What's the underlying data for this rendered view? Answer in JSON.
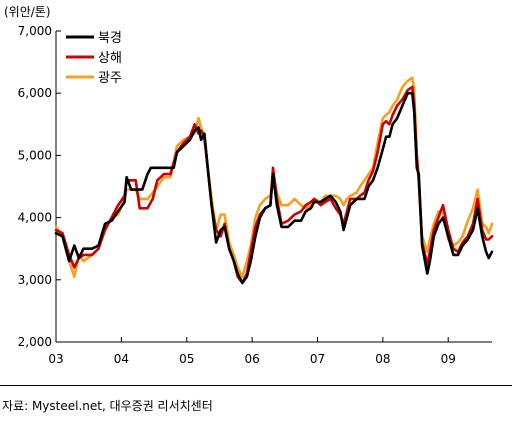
{
  "unit_label": "(위안/톤)",
  "source_note": "자료: Mysteel.net, 대우증권 리서치센터",
  "chart_data": {
    "type": "line",
    "title": "",
    "xlabel": "",
    "ylabel": "(위안/톤)",
    "x_ticks": [
      "03",
      "04",
      "05",
      "06",
      "07",
      "08",
      "09"
    ],
    "y_ticks": [
      "2,000",
      "3,000",
      "4,000",
      "5,000",
      "6,000",
      "7,000"
    ],
    "xlim": [
      2003.0,
      2009.67
    ],
    "ylim": [
      2000,
      7000
    ],
    "grid": false,
    "legend_position": "top-left",
    "series": [
      {
        "name": "북경",
        "color": "#000000",
        "points": [
          [
            2003.0,
            3750
          ],
          [
            2003.1,
            3700
          ],
          [
            2003.2,
            3300
          ],
          [
            2003.28,
            3550
          ],
          [
            2003.35,
            3350
          ],
          [
            2003.42,
            3500
          ],
          [
            2003.55,
            3500
          ],
          [
            2003.65,
            3550
          ],
          [
            2003.75,
            3900
          ],
          [
            2003.85,
            3950
          ],
          [
            2003.95,
            4100
          ],
          [
            2004.05,
            4250
          ],
          [
            2004.08,
            4650
          ],
          [
            2004.15,
            4450
          ],
          [
            2004.25,
            4450
          ],
          [
            2004.32,
            4450
          ],
          [
            2004.4,
            4700
          ],
          [
            2004.45,
            4800
          ],
          [
            2004.55,
            4800
          ],
          [
            2004.7,
            4800
          ],
          [
            2004.8,
            4800
          ],
          [
            2004.85,
            5050
          ],
          [
            2004.95,
            5150
          ],
          [
            2005.05,
            5250
          ],
          [
            2005.12,
            5400
          ],
          [
            2005.18,
            5450
          ],
          [
            2005.22,
            5250
          ],
          [
            2005.27,
            5350
          ],
          [
            2005.32,
            4800
          ],
          [
            2005.38,
            4200
          ],
          [
            2005.45,
            3600
          ],
          [
            2005.52,
            3800
          ],
          [
            2005.58,
            3850
          ],
          [
            2005.65,
            3500
          ],
          [
            2005.72,
            3300
          ],
          [
            2005.78,
            3100
          ],
          [
            2005.85,
            2950
          ],
          [
            2005.92,
            3050
          ],
          [
            2005.98,
            3300
          ],
          [
            2006.05,
            3700
          ],
          [
            2006.12,
            4000
          ],
          [
            2006.2,
            4150
          ],
          [
            2006.28,
            4200
          ],
          [
            2006.32,
            4700
          ],
          [
            2006.38,
            4200
          ],
          [
            2006.45,
            3850
          ],
          [
            2006.55,
            3850
          ],
          [
            2006.65,
            3950
          ],
          [
            2006.75,
            3950
          ],
          [
            2006.82,
            4100
          ],
          [
            2006.9,
            4150
          ],
          [
            2006.95,
            4250
          ],
          [
            2007.05,
            4250
          ],
          [
            2007.12,
            4300
          ],
          [
            2007.2,
            4350
          ],
          [
            2007.28,
            4250
          ],
          [
            2007.35,
            4100
          ],
          [
            2007.4,
            3800
          ],
          [
            2007.45,
            4000
          ],
          [
            2007.5,
            4200
          ],
          [
            2007.6,
            4300
          ],
          [
            2007.65,
            4300
          ],
          [
            2007.72,
            4300
          ],
          [
            2007.78,
            4500
          ],
          [
            2007.85,
            4600
          ],
          [
            2007.92,
            4800
          ],
          [
            2008.0,
            5100
          ],
          [
            2008.05,
            5300
          ],
          [
            2008.1,
            5300
          ],
          [
            2008.15,
            5500
          ],
          [
            2008.22,
            5600
          ],
          [
            2008.3,
            5800
          ],
          [
            2008.38,
            6000
          ],
          [
            2008.45,
            6000
          ],
          [
            2008.48,
            5700
          ],
          [
            2008.52,
            4800
          ],
          [
            2008.55,
            4700
          ],
          [
            2008.6,
            3550
          ],
          [
            2008.68,
            3100
          ],
          [
            2008.72,
            3300
          ],
          [
            2008.78,
            3700
          ],
          [
            2008.85,
            3900
          ],
          [
            2008.92,
            4000
          ],
          [
            2009.0,
            3700
          ],
          [
            2009.08,
            3400
          ],
          [
            2009.15,
            3400
          ],
          [
            2009.22,
            3550
          ],
          [
            2009.3,
            3650
          ],
          [
            2009.38,
            3800
          ],
          [
            2009.45,
            4150
          ],
          [
            2009.52,
            3700
          ],
          [
            2009.58,
            3450
          ],
          [
            2009.62,
            3350
          ],
          [
            2009.67,
            3450
          ]
        ]
      },
      {
        "name": "상해",
        "color": "#cc0000",
        "points": [
          [
            2003.0,
            3800
          ],
          [
            2003.1,
            3750
          ],
          [
            2003.2,
            3400
          ],
          [
            2003.28,
            3200
          ],
          [
            2003.35,
            3350
          ],
          [
            2003.42,
            3400
          ],
          [
            2003.55,
            3400
          ],
          [
            2003.65,
            3500
          ],
          [
            2003.75,
            3800
          ],
          [
            2003.85,
            4000
          ],
          [
            2003.95,
            4200
          ],
          [
            2004.05,
            4350
          ],
          [
            2004.08,
            4600
          ],
          [
            2004.15,
            4600
          ],
          [
            2004.22,
            4600
          ],
          [
            2004.28,
            4150
          ],
          [
            2004.4,
            4150
          ],
          [
            2004.48,
            4300
          ],
          [
            2004.55,
            4600
          ],
          [
            2004.65,
            4700
          ],
          [
            2004.75,
            4700
          ],
          [
            2004.85,
            5050
          ],
          [
            2004.95,
            5200
          ],
          [
            2005.05,
            5300
          ],
          [
            2005.12,
            5500
          ],
          [
            2005.18,
            5350
          ],
          [
            2005.22,
            5400
          ],
          [
            2005.27,
            5300
          ],
          [
            2005.32,
            4800
          ],
          [
            2005.38,
            4200
          ],
          [
            2005.45,
            3800
          ],
          [
            2005.52,
            3700
          ],
          [
            2005.58,
            3900
          ],
          [
            2005.65,
            3500
          ],
          [
            2005.72,
            3300
          ],
          [
            2005.78,
            3050
          ],
          [
            2005.85,
            2950
          ],
          [
            2005.92,
            3100
          ],
          [
            2005.98,
            3450
          ],
          [
            2006.05,
            3850
          ],
          [
            2006.12,
            4050
          ],
          [
            2006.2,
            4150
          ],
          [
            2006.28,
            4200
          ],
          [
            2006.32,
            4800
          ],
          [
            2006.38,
            4300
          ],
          [
            2006.45,
            3900
          ],
          [
            2006.55,
            3950
          ],
          [
            2006.65,
            4050
          ],
          [
            2006.75,
            4100
          ],
          [
            2006.82,
            4200
          ],
          [
            2006.9,
            4250
          ],
          [
            2006.95,
            4300
          ],
          [
            2007.05,
            4200
          ],
          [
            2007.12,
            4250
          ],
          [
            2007.2,
            4300
          ],
          [
            2007.28,
            4150
          ],
          [
            2007.35,
            4050
          ],
          [
            2007.4,
            3900
          ],
          [
            2007.45,
            4100
          ],
          [
            2007.5,
            4300
          ],
          [
            2007.6,
            4300
          ],
          [
            2007.65,
            4350
          ],
          [
            2007.72,
            4400
          ],
          [
            2007.78,
            4600
          ],
          [
            2007.85,
            4750
          ],
          [
            2007.92,
            5050
          ],
          [
            2008.0,
            5500
          ],
          [
            2008.05,
            5550
          ],
          [
            2008.1,
            5500
          ],
          [
            2008.15,
            5650
          ],
          [
            2008.22,
            5800
          ],
          [
            2008.3,
            5900
          ],
          [
            2008.38,
            6050
          ],
          [
            2008.45,
            6100
          ],
          [
            2008.48,
            5800
          ],
          [
            2008.52,
            5000
          ],
          [
            2008.55,
            4600
          ],
          [
            2008.6,
            3600
          ],
          [
            2008.68,
            3250
          ],
          [
            2008.72,
            3450
          ],
          [
            2008.78,
            3800
          ],
          [
            2008.85,
            4000
          ],
          [
            2008.92,
            4200
          ],
          [
            2009.0,
            3800
          ],
          [
            2009.08,
            3500
          ],
          [
            2009.15,
            3450
          ],
          [
            2009.22,
            3600
          ],
          [
            2009.3,
            3700
          ],
          [
            2009.38,
            3900
          ],
          [
            2009.45,
            4300
          ],
          [
            2009.52,
            3800
          ],
          [
            2009.58,
            3650
          ],
          [
            2009.62,
            3650
          ],
          [
            2009.67,
            3700
          ]
        ]
      },
      {
        "name": "광주",
        "color": "#f5a020",
        "points": [
          [
            2003.0,
            3850
          ],
          [
            2003.1,
            3700
          ],
          [
            2003.2,
            3300
          ],
          [
            2003.28,
            3050
          ],
          [
            2003.35,
            3400
          ],
          [
            2003.42,
            3300
          ],
          [
            2003.55,
            3400
          ],
          [
            2003.65,
            3500
          ],
          [
            2003.75,
            3850
          ],
          [
            2003.85,
            4000
          ],
          [
            2003.95,
            4050
          ],
          [
            2004.05,
            4300
          ],
          [
            2004.08,
            4450
          ],
          [
            2004.15,
            4450
          ],
          [
            2004.22,
            4450
          ],
          [
            2004.28,
            4300
          ],
          [
            2004.4,
            4300
          ],
          [
            2004.48,
            4400
          ],
          [
            2004.55,
            4500
          ],
          [
            2004.65,
            4650
          ],
          [
            2004.75,
            4650
          ],
          [
            2004.85,
            5150
          ],
          [
            2004.95,
            5250
          ],
          [
            2005.05,
            5300
          ],
          [
            2005.12,
            5350
          ],
          [
            2005.18,
            5600
          ],
          [
            2005.22,
            5450
          ],
          [
            2005.27,
            5250
          ],
          [
            2005.32,
            4800
          ],
          [
            2005.38,
            4300
          ],
          [
            2005.45,
            3800
          ],
          [
            2005.52,
            4050
          ],
          [
            2005.58,
            4050
          ],
          [
            2005.65,
            3600
          ],
          [
            2005.72,
            3400
          ],
          [
            2005.78,
            3200
          ],
          [
            2005.85,
            3050
          ],
          [
            2005.92,
            3300
          ],
          [
            2005.98,
            3550
          ],
          [
            2006.05,
            4000
          ],
          [
            2006.12,
            4200
          ],
          [
            2006.2,
            4300
          ],
          [
            2006.28,
            4350
          ],
          [
            2006.32,
            4700
          ],
          [
            2006.38,
            4400
          ],
          [
            2006.45,
            4200
          ],
          [
            2006.55,
            4200
          ],
          [
            2006.65,
            4300
          ],
          [
            2006.75,
            4200
          ],
          [
            2006.82,
            4150
          ],
          [
            2006.9,
            4200
          ],
          [
            2006.95,
            4300
          ],
          [
            2007.05,
            4250
          ],
          [
            2007.12,
            4350
          ],
          [
            2007.2,
            4350
          ],
          [
            2007.28,
            4350
          ],
          [
            2007.35,
            4300
          ],
          [
            2007.4,
            4200
          ],
          [
            2007.45,
            4300
          ],
          [
            2007.5,
            4350
          ],
          [
            2007.6,
            4400
          ],
          [
            2007.65,
            4500
          ],
          [
            2007.72,
            4600
          ],
          [
            2007.78,
            4700
          ],
          [
            2007.85,
            4800
          ],
          [
            2007.92,
            5200
          ],
          [
            2008.0,
            5600
          ],
          [
            2008.05,
            5650
          ],
          [
            2008.1,
            5700
          ],
          [
            2008.15,
            5800
          ],
          [
            2008.22,
            5900
          ],
          [
            2008.3,
            6100
          ],
          [
            2008.38,
            6200
          ],
          [
            2008.45,
            6250
          ],
          [
            2008.48,
            6050
          ],
          [
            2008.52,
            5000
          ],
          [
            2008.55,
            4550
          ],
          [
            2008.6,
            3700
          ],
          [
            2008.68,
            3450
          ],
          [
            2008.72,
            3650
          ],
          [
            2008.78,
            3900
          ],
          [
            2008.85,
            4100
          ],
          [
            2008.92,
            4100
          ],
          [
            2009.0,
            3650
          ],
          [
            2009.08,
            3550
          ],
          [
            2009.15,
            3600
          ],
          [
            2009.22,
            3700
          ],
          [
            2009.3,
            3950
          ],
          [
            2009.38,
            4150
          ],
          [
            2009.45,
            4450
          ],
          [
            2009.52,
            3900
          ],
          [
            2009.58,
            3850
          ],
          [
            2009.62,
            3750
          ],
          [
            2009.67,
            3900
          ]
        ]
      }
    ]
  }
}
